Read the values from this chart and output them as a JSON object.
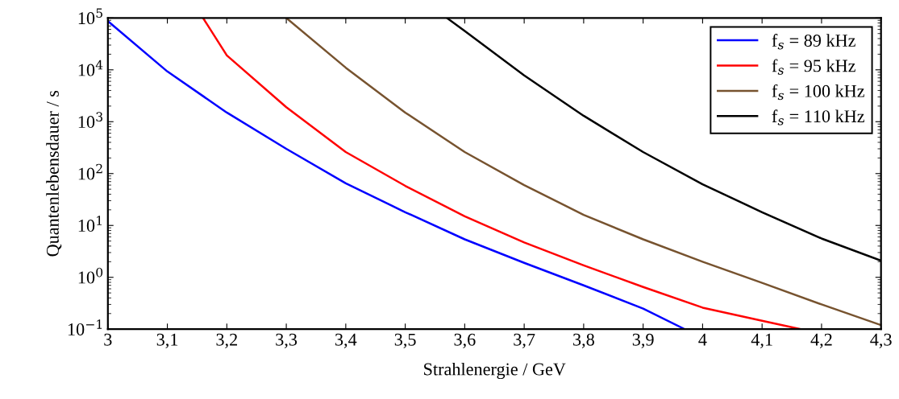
{
  "chart_data": {
    "type": "line",
    "xlabel": "Strahlenergie / GeV",
    "ylabel": "Quantenlebensdauer / s",
    "log": "y",
    "grid": false,
    "legend": "top right",
    "marker": "none",
    "line_style": "solid",
    "xlim": [
      3,
      4.3
    ],
    "xticks": [
      {
        "value": 3,
        "label": "3"
      },
      {
        "value": 3.1,
        "label": "3,1"
      },
      {
        "value": 3.2,
        "label": "3,2"
      },
      {
        "value": 3.3,
        "label": "3,3"
      },
      {
        "value": 3.4,
        "label": "3,4"
      },
      {
        "value": 3.5,
        "label": "3,5"
      },
      {
        "value": 3.6,
        "label": "3,6"
      },
      {
        "value": 3.7,
        "label": "3,7"
      },
      {
        "value": 3.8,
        "label": "3,8"
      },
      {
        "value": 3.9,
        "label": "3,9"
      },
      {
        "value": 4,
        "label": "4"
      },
      {
        "value": 4.1,
        "label": "4,1"
      },
      {
        "value": 4.2,
        "label": "4,2"
      },
      {
        "value": 4.3,
        "label": "4,3"
      }
    ],
    "ylim": [
      0.1,
      100000
    ],
    "yticks": [
      {
        "value": 0.1,
        "label": "10$^{−1}$"
      },
      {
        "value": 1,
        "label": "10$^{0}$"
      },
      {
        "value": 10,
        "label": "10$^{1}$"
      },
      {
        "value": 100,
        "label": "10$^{2}$"
      },
      {
        "value": 1000,
        "label": "10$^{3}$"
      },
      {
        "value": 10000,
        "label": "10$^{4}$"
      },
      {
        "value": 100000,
        "label": "10$^{5}$"
      }
    ],
    "series": [
      {
        "name": "f$_{s}$ = 89 kHz",
        "color": "#0000ff",
        "x": [
          3,
          3.1,
          3.2,
          3.3,
          3.4,
          3.5,
          3.6,
          3.7,
          3.8,
          3.9,
          3.97
        ],
        "values": [
          87000,
          9300,
          1500,
          300,
          65,
          18,
          5.4,
          1.9,
          0.7,
          0.25,
          0.1
        ]
      },
      {
        "name": "f$_{s}$ = 95 kHz",
        "color": "#ff0000",
        "x": [
          3.16,
          3.2,
          3.3,
          3.4,
          3.5,
          3.6,
          3.7,
          3.8,
          3.9,
          4.0,
          4.1,
          4.165
        ],
        "values": [
          100000,
          19000,
          1900,
          260,
          58,
          15,
          4.7,
          1.7,
          0.65,
          0.26,
          0.145,
          0.1
        ]
      },
      {
        "name": "f$_{s}$ = 100 kHz",
        "color": "#77532f",
        "x": [
          3.3,
          3.4,
          3.5,
          3.6,
          3.7,
          3.8,
          3.9,
          4.0,
          4.1,
          4.2,
          4.3
        ],
        "values": [
          100000,
          11000,
          1500,
          260,
          60,
          16,
          5.4,
          2.0,
          0.78,
          0.3,
          0.12
        ]
      },
      {
        "name": "f$_{s}$ = 110 kHz",
        "color": "#000000",
        "x": [
          3.57,
          3.6,
          3.7,
          3.8,
          3.9,
          4.0,
          4.1,
          4.2,
          4.3
        ],
        "values": [
          100000,
          56000,
          7800,
          1300,
          260,
          62,
          18,
          5.6,
          2.1
        ]
      }
    ]
  }
}
